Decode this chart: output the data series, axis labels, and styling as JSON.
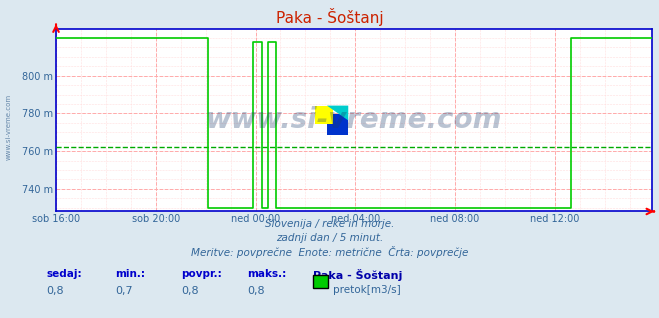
{
  "title": "Paka - Šoštanj",
  "bg_color": "#dce8f0",
  "plot_bg_color": "#ffffff",
  "line_color": "#00cc00",
  "grid_color_major": "#ffaaaa",
  "grid_color_minor": "#ffdddd",
  "axis_color": "#0000cc",
  "dashed_line_color": "#00aa00",
  "dashed_line_y": 762,
  "ylim": [
    728,
    825
  ],
  "yticks": [
    740,
    760,
    780,
    800
  ],
  "ylabel_suffix": " m",
  "xtick_labels": [
    "sob 16:00",
    "sob 20:00",
    "ned 00:00",
    "ned 04:00",
    "ned 08:00",
    "ned 12:00"
  ],
  "subtitle1": "Slovenija / reke in morje.",
  "subtitle2": "zadnji dan / 5 minut.",
  "subtitle3": "Meritve: povprečne  Enote: metrične  Črta: povprečje",
  "legend_station": "Paka - Šoštanj",
  "legend_label": "pretok[m3/s]",
  "stat_sedaj": "0,8",
  "stat_min": "0,7",
  "stat_povpr": "0,8",
  "stat_maks": "0,8",
  "watermark": "www.si-vreme.com",
  "left_label": "www.si-vreme.com",
  "n_points": 288,
  "high_value": 820,
  "low_value": 730,
  "spike_value": 818
}
